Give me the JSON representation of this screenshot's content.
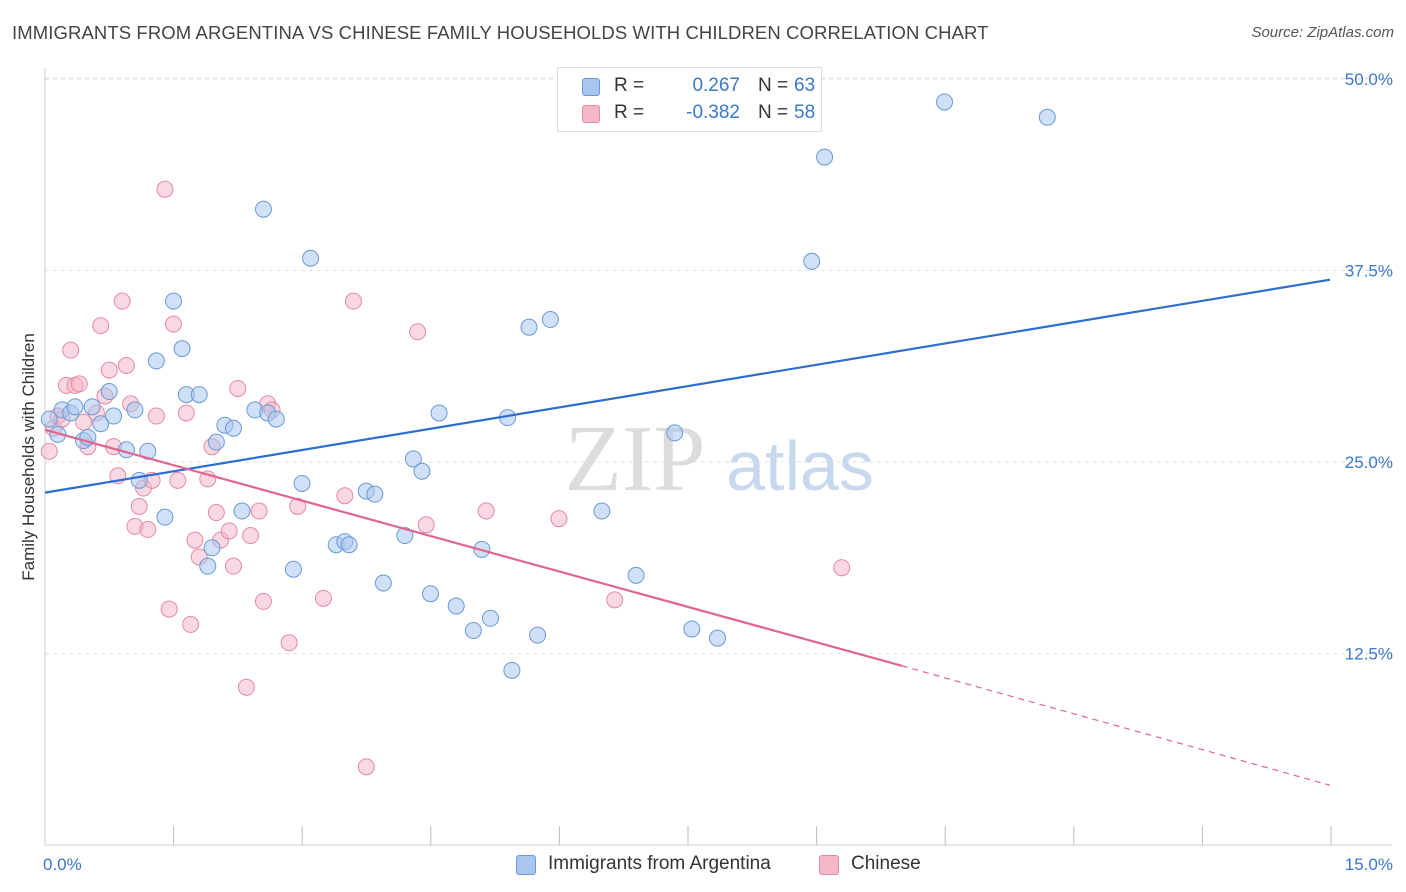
{
  "title": "IMMIGRANTS FROM ARGENTINA VS CHINESE FAMILY HOUSEHOLDS WITH CHILDREN CORRELATION CHART",
  "source": "Source: ZipAtlas.com",
  "watermark": {
    "zip": "ZIP",
    "atlas": "atlas"
  },
  "legend": {
    "rows": [
      {
        "r_label": "R =",
        "r_value": "0.267",
        "n_label": "N =",
        "n_value": "63"
      },
      {
        "r_label": "R =",
        "r_value": "-0.382",
        "n_label": "N =",
        "n_value": "58"
      }
    ]
  },
  "colors": {
    "blue_fill": "#a9c6ee",
    "blue_stroke": "#6a9ad8",
    "blue_line": "#2d6fd0",
    "pink_fill": "#f5b8c9",
    "pink_stroke": "#e58aa6",
    "pink_line": "#e0658f",
    "axis_text": "#3a78c9",
    "grid": "#e2e2e2"
  },
  "chart_data": {
    "type": "scatter",
    "title": "IMMIGRANTS FROM ARGENTINA VS CHINESE FAMILY HOUSEHOLDS WITH CHILDREN CORRELATION CHART",
    "xlabel": "",
    "ylabel": "Family Households with Children",
    "xlim": [
      0,
      15
    ],
    "ylim": [
      0,
      52.5
    ],
    "x_tick_labels": [
      "0.0%",
      "15.0%"
    ],
    "y_ticks": [
      12.5,
      25.0,
      37.5,
      50.0
    ],
    "y_tick_labels": [
      "12.5%",
      "25.0%",
      "37.5%",
      "50.0%"
    ],
    "grid": true,
    "legend_position": "top-center and bottom",
    "series": [
      {
        "name": "Immigrants from Argentina",
        "R": 0.267,
        "N": 63,
        "trend": {
          "x": [
            0,
            15
          ],
          "y": [
            23.0,
            36.9
          ]
        },
        "points": [
          [
            0.05,
            27.8
          ],
          [
            0.15,
            26.8
          ],
          [
            0.2,
            28.4
          ],
          [
            0.3,
            28.2
          ],
          [
            0.35,
            28.6
          ],
          [
            0.45,
            26.4
          ],
          [
            0.5,
            26.6
          ],
          [
            0.55,
            28.6
          ],
          [
            0.65,
            27.5
          ],
          [
            0.75,
            29.6
          ],
          [
            0.8,
            28.0
          ],
          [
            0.95,
            25.8
          ],
          [
            1.05,
            28.4
          ],
          [
            1.1,
            23.8
          ],
          [
            1.2,
            25.7
          ],
          [
            1.3,
            31.6
          ],
          [
            1.4,
            21.4
          ],
          [
            1.5,
            35.5
          ],
          [
            1.6,
            32.4
          ],
          [
            1.65,
            29.4
          ],
          [
            1.8,
            29.4
          ],
          [
            1.9,
            18.2
          ],
          [
            1.95,
            19.4
          ],
          [
            2.0,
            26.3
          ],
          [
            2.1,
            27.4
          ],
          [
            2.2,
            27.2
          ],
          [
            2.3,
            21.8
          ],
          [
            2.45,
            28.4
          ],
          [
            2.55,
            41.5
          ],
          [
            2.6,
            28.2
          ],
          [
            2.7,
            27.8
          ],
          [
            2.9,
            18.0
          ],
          [
            3.0,
            23.6
          ],
          [
            3.1,
            38.3
          ],
          [
            3.4,
            19.6
          ],
          [
            3.5,
            19.8
          ],
          [
            3.55,
            19.6
          ],
          [
            3.75,
            23.1
          ],
          [
            3.85,
            22.9
          ],
          [
            3.95,
            17.1
          ],
          [
            4.2,
            20.2
          ],
          [
            4.3,
            25.2
          ],
          [
            4.4,
            24.4
          ],
          [
            4.5,
            16.4
          ],
          [
            4.6,
            28.2
          ],
          [
            4.8,
            15.6
          ],
          [
            5.0,
            14.0
          ],
          [
            5.1,
            19.3
          ],
          [
            5.2,
            14.8
          ],
          [
            5.4,
            27.9
          ],
          [
            5.45,
            11.4
          ],
          [
            5.65,
            33.8
          ],
          [
            5.75,
            13.7
          ],
          [
            5.9,
            34.3
          ],
          [
            6.5,
            21.8
          ],
          [
            6.9,
            17.6
          ],
          [
            7.35,
            26.9
          ],
          [
            7.55,
            14.1
          ],
          [
            7.85,
            13.5
          ],
          [
            8.95,
            38.1
          ],
          [
            9.1,
            44.9
          ],
          [
            10.5,
            48.5
          ],
          [
            11.7,
            47.5
          ]
        ]
      },
      {
        "name": "Chinese",
        "R": -0.382,
        "N": 58,
        "trend": {
          "x": [
            0,
            10.0
          ],
          "y": [
            27.1,
            11.7
          ]
        },
        "trend_dashed": {
          "x": [
            10.0,
            15.0
          ],
          "y": [
            11.7,
            3.9
          ]
        },
        "points": [
          [
            0.05,
            25.7
          ],
          [
            0.1,
            27.2
          ],
          [
            0.15,
            28.0
          ],
          [
            0.2,
            27.8
          ],
          [
            0.25,
            30.0
          ],
          [
            0.3,
            32.3
          ],
          [
            0.35,
            30.0
          ],
          [
            0.4,
            30.1
          ],
          [
            0.45,
            27.6
          ],
          [
            0.5,
            26.0
          ],
          [
            0.6,
            28.2
          ],
          [
            0.65,
            33.9
          ],
          [
            0.7,
            29.3
          ],
          [
            0.75,
            31.0
          ],
          [
            0.8,
            26.0
          ],
          [
            0.85,
            24.1
          ],
          [
            0.9,
            35.5
          ],
          [
            0.95,
            31.3
          ],
          [
            1.0,
            28.8
          ],
          [
            1.05,
            20.8
          ],
          [
            1.1,
            22.1
          ],
          [
            1.15,
            23.3
          ],
          [
            1.2,
            20.6
          ],
          [
            1.25,
            23.8
          ],
          [
            1.3,
            28.0
          ],
          [
            1.4,
            42.8
          ],
          [
            1.45,
            15.4
          ],
          [
            1.5,
            34.0
          ],
          [
            1.55,
            23.8
          ],
          [
            1.65,
            28.2
          ],
          [
            1.7,
            14.4
          ],
          [
            1.75,
            19.9
          ],
          [
            1.8,
            18.8
          ],
          [
            1.9,
            23.9
          ],
          [
            1.95,
            26.0
          ],
          [
            2.0,
            21.7
          ],
          [
            2.05,
            19.9
          ],
          [
            2.15,
            20.5
          ],
          [
            2.2,
            18.2
          ],
          [
            2.25,
            29.8
          ],
          [
            2.35,
            10.3
          ],
          [
            2.4,
            20.2
          ],
          [
            2.5,
            21.8
          ],
          [
            2.55,
            15.9
          ],
          [
            2.6,
            28.8
          ],
          [
            2.65,
            28.4
          ],
          [
            2.85,
            13.2
          ],
          [
            2.95,
            22.1
          ],
          [
            3.25,
            16.1
          ],
          [
            3.5,
            22.8
          ],
          [
            3.6,
            35.5
          ],
          [
            3.75,
            5.1
          ],
          [
            4.35,
            33.5
          ],
          [
            4.45,
            20.9
          ],
          [
            5.15,
            21.8
          ],
          [
            6.0,
            21.3
          ],
          [
            6.65,
            16.0
          ],
          [
            9.3,
            18.1
          ]
        ]
      }
    ]
  }
}
